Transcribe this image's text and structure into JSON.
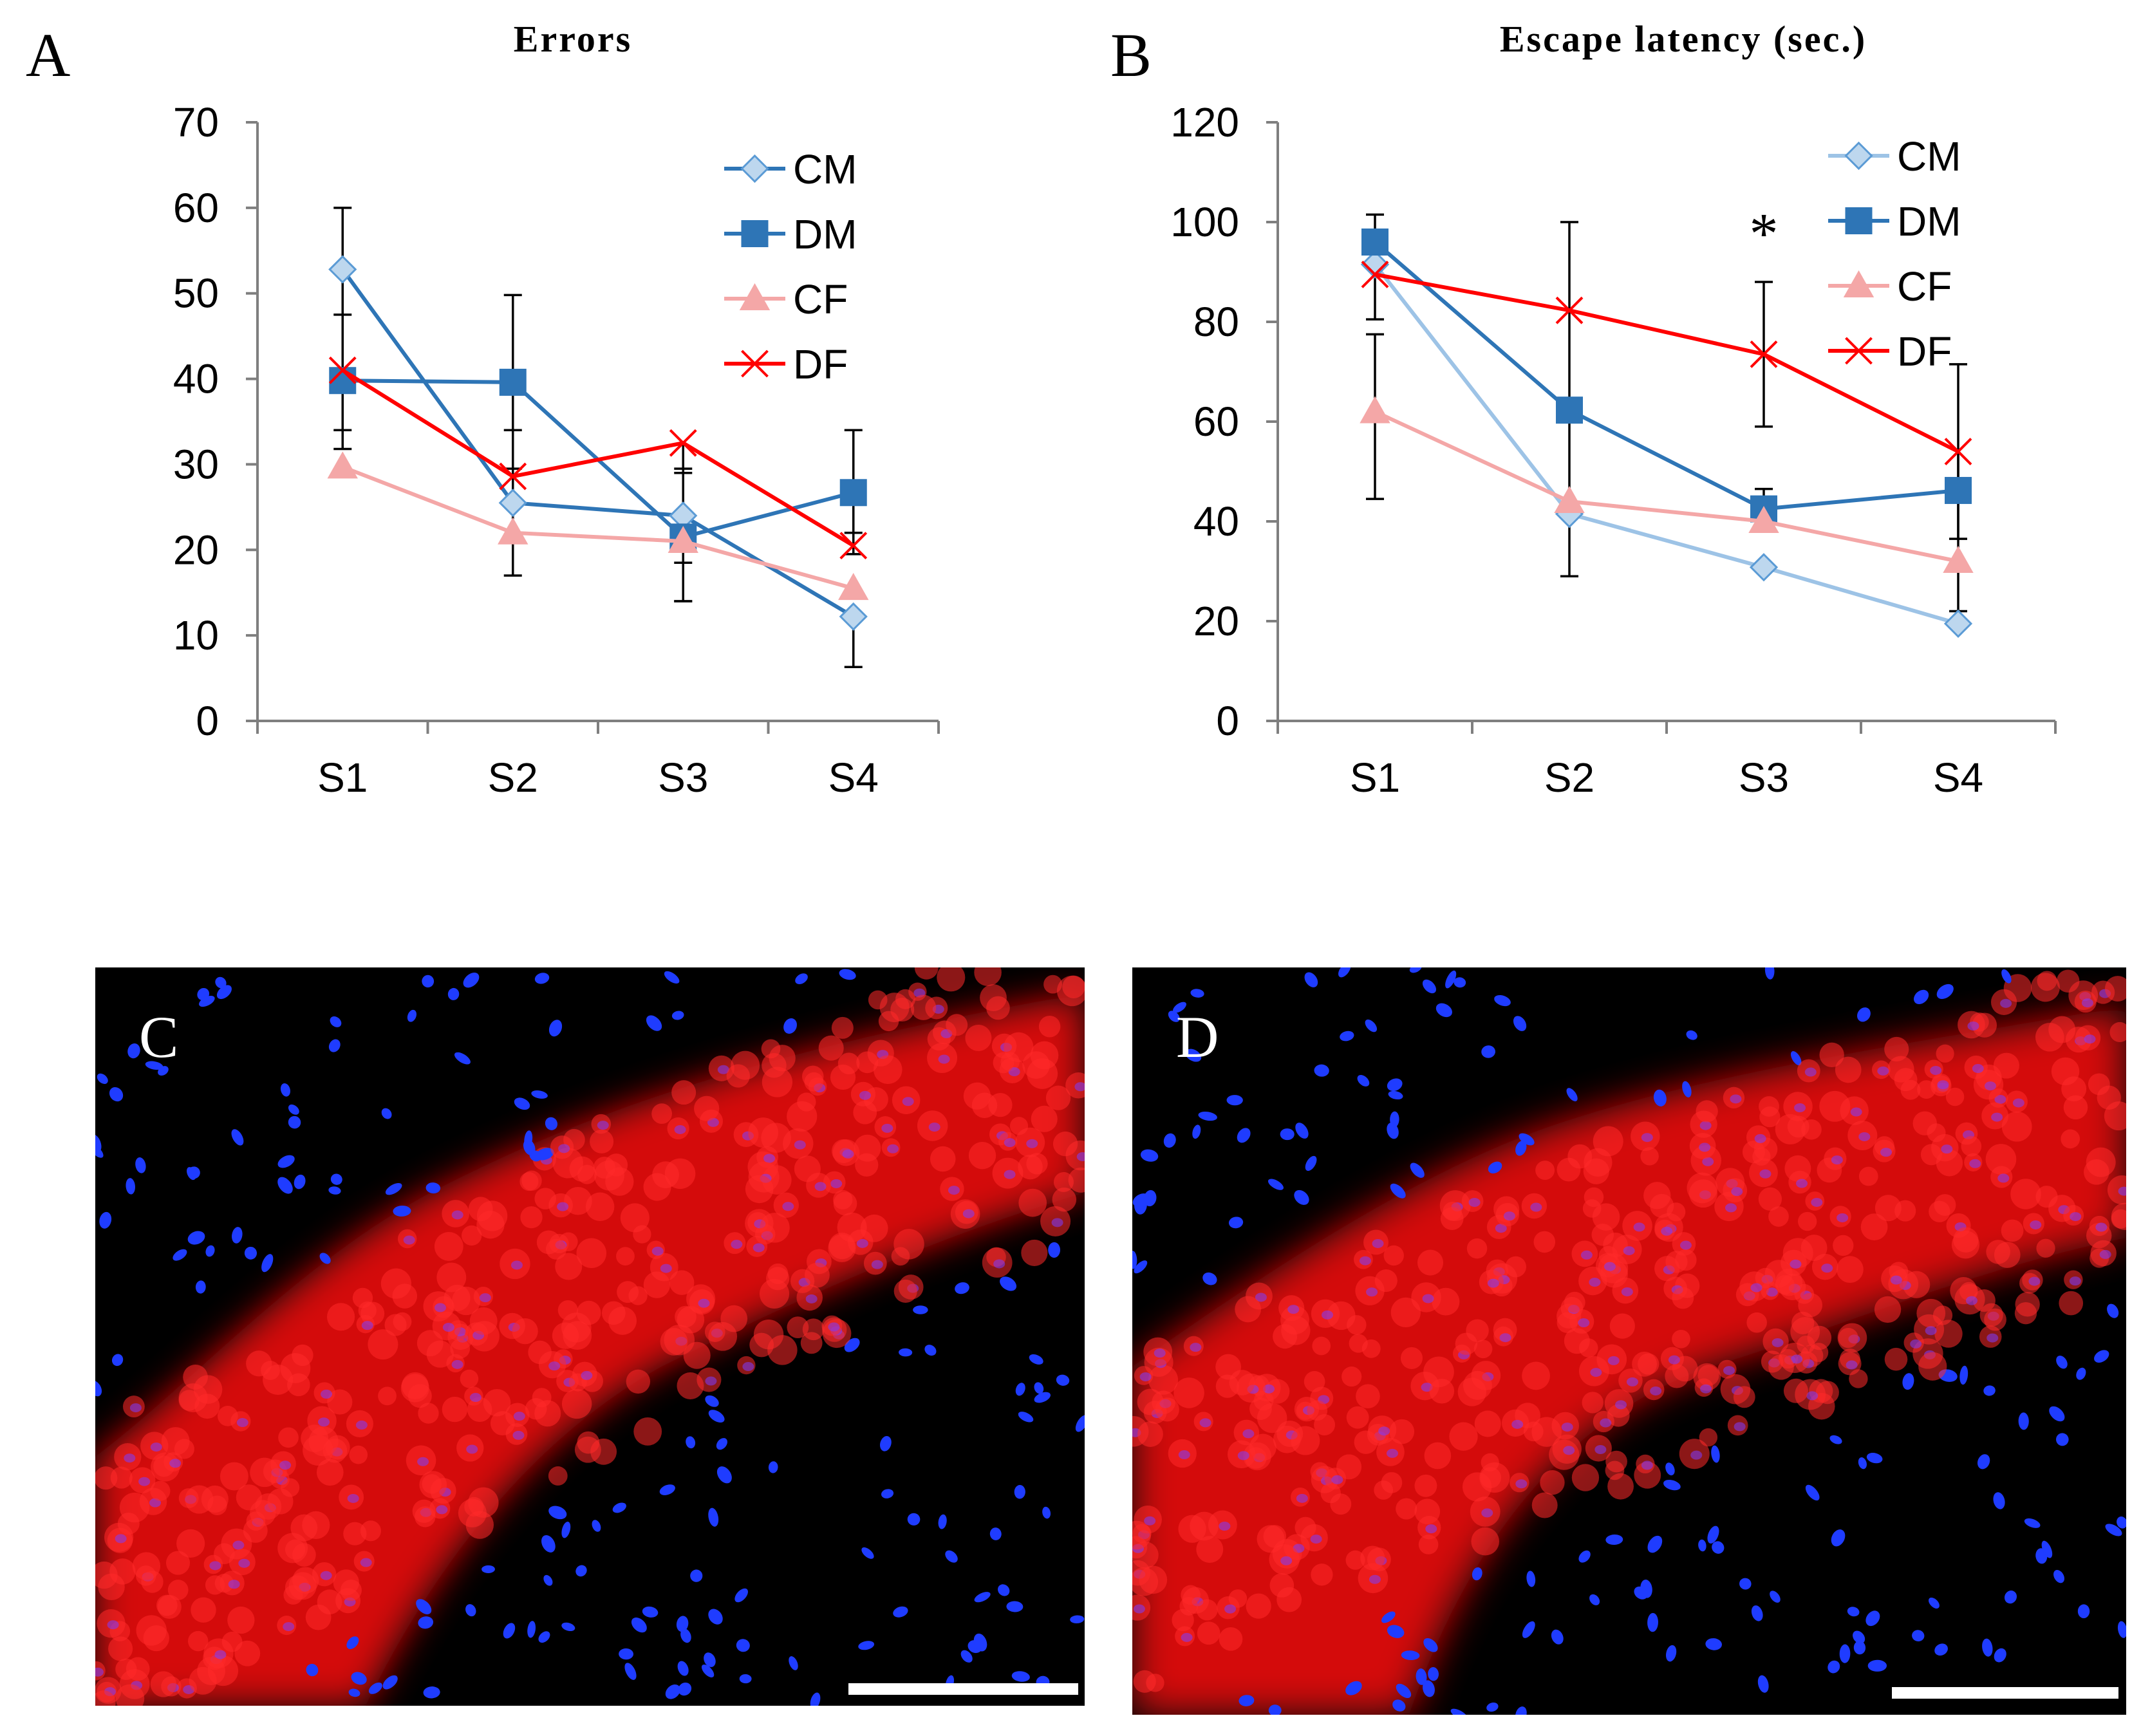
{
  "panel_letters": {
    "a": "A",
    "b": "B",
    "c": "C",
    "d": "D"
  },
  "chart_data": [
    {
      "type": "line",
      "panel": "A",
      "title": "Errors",
      "xlabel": "",
      "ylabel": "",
      "categories": [
        "S1",
        "S2",
        "S3",
        "S4"
      ],
      "ylim": [
        0,
        70
      ],
      "yticks": [
        "0",
        "10",
        "20",
        "30",
        "40",
        "50",
        "60",
        "70"
      ],
      "grid": false,
      "legend_position": "top-right",
      "series": [
        {
          "name": "CM",
          "values": [
            52.8,
            25.5,
            24.0,
            12.2
          ],
          "color": "#2e75b6",
          "marker": "diamond",
          "marker_fill": "#bdd7ee",
          "err_upper": [
            null,
            null,
            29.5,
            null
          ],
          "err_lower": [
            null,
            null,
            18.5,
            6.3
          ]
        },
        {
          "name": "DM",
          "values": [
            39.8,
            39.6,
            21.5,
            26.7
          ],
          "color": "#2e75b6",
          "marker": "square",
          "marker_fill": "#2e75b6",
          "err_upper": [
            60.0,
            49.8,
            29.0,
            34.0
          ],
          "err_lower": [
            31.8,
            29.5,
            14.0,
            19.5
          ]
        },
        {
          "name": "CF",
          "values": [
            29.7,
            22.0,
            21.0,
            15.5
          ],
          "color": "#f4a7a7",
          "marker": "triangle",
          "marker_fill": "#f4a7a7",
          "err_upper": [
            null,
            null,
            null,
            null
          ],
          "err_lower": [
            null,
            null,
            null,
            null
          ]
        },
        {
          "name": "DF",
          "values": [
            41.0,
            28.6,
            32.5,
            20.5
          ],
          "color": "#ff0000",
          "marker": "x",
          "marker_fill": "none",
          "err_upper": [
            47.5,
            34.0,
            null,
            22.0
          ],
          "err_lower": [
            34.0,
            17.0,
            14.0,
            null
          ]
        }
      ]
    },
    {
      "type": "line",
      "panel": "B",
      "title": "Escape latency (sec.)",
      "xlabel": "",
      "ylabel": "",
      "categories": [
        "S1",
        "S2",
        "S3",
        "S4"
      ],
      "ylim": [
        0,
        120
      ],
      "yticks": [
        "0",
        "20",
        "40",
        "60",
        "80",
        "100",
        "120"
      ],
      "grid": false,
      "legend_position": "top-right",
      "annotation": "*",
      "annotation_category": "S3",
      "annotation_value": 99,
      "series": [
        {
          "name": "CM",
          "values": [
            91.5,
            41.5,
            30.8,
            19.5
          ],
          "color": "#9dc3e6",
          "marker": "diamond",
          "marker_fill": "#bdd7ee",
          "err_upper": [
            null,
            null,
            null,
            null
          ],
          "err_lower": [
            null,
            null,
            null,
            null
          ]
        },
        {
          "name": "DM",
          "values": [
            96.0,
            62.3,
            42.5,
            46.2
          ],
          "color": "#2e75b6",
          "marker": "square",
          "marker_fill": "#2e75b6",
          "err_upper": [
            101.5,
            100.0,
            46.5,
            71.5
          ],
          "err_lower": [
            80.5,
            29.0,
            38.5,
            22.0
          ]
        },
        {
          "name": "CF",
          "values": [
            62.0,
            44.0,
            40.0,
            32.0
          ],
          "color": "#f4a7a7",
          "marker": "triangle",
          "marker_fill": "#f4a7a7",
          "err_upper": [
            77.5,
            null,
            null,
            null
          ],
          "err_lower": [
            44.5,
            null,
            null,
            null
          ]
        },
        {
          "name": "DF",
          "values": [
            89.5,
            82.3,
            73.5,
            54.0
          ],
          "color": "#ff0000",
          "marker": "x",
          "marker_fill": "none",
          "err_upper": [
            null,
            null,
            88.0,
            null
          ],
          "err_lower": [
            null,
            null,
            59.0,
            36.5
          ]
        }
      ]
    }
  ],
  "micrographs": [
    {
      "letter": "C",
      "tissue_color": "#ff1a1a",
      "nucleus_color": "#1f2bff",
      "background": "#000000"
    },
    {
      "letter": "D",
      "tissue_color": "#ff1a1a",
      "nucleus_color": "#1f2bff",
      "background": "#000000"
    }
  ]
}
